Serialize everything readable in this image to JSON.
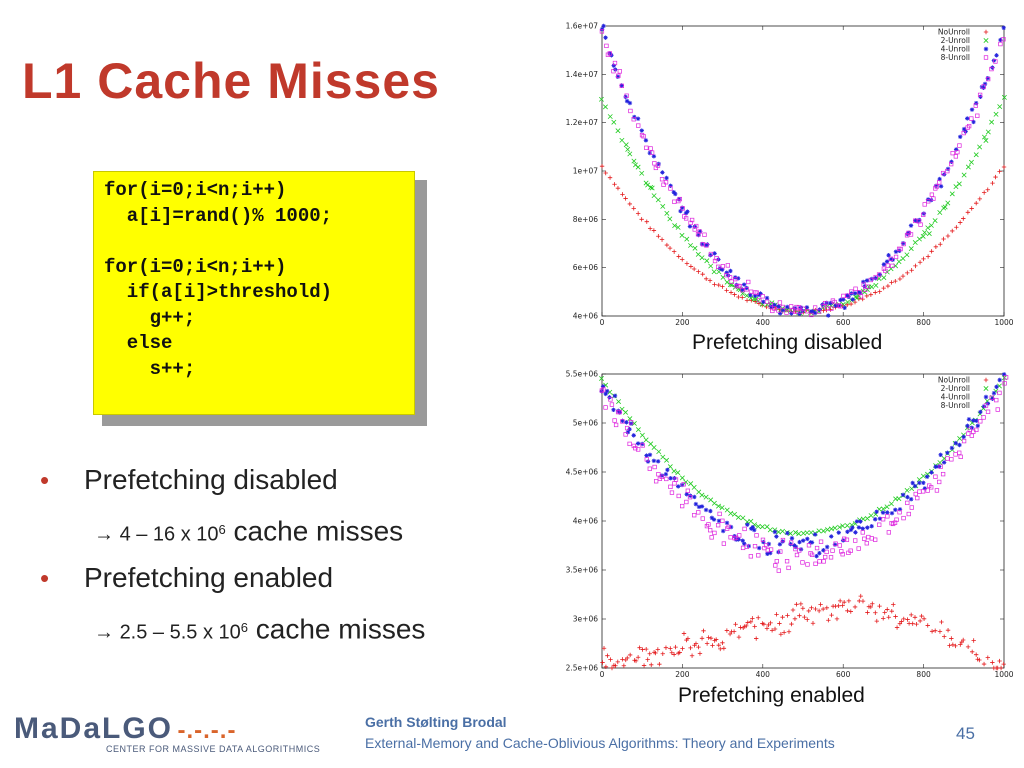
{
  "slide": {
    "title": "L1 Cache Misses",
    "page_number": "45"
  },
  "code": {
    "lines": [
      "for(i=0;i<n;i++)",
      "  a[i]=rand()% 1000;",
      "",
      "for(i=0;i<n;i++)",
      "  if(a[i]>threshold)",
      "    g++;",
      "  else",
      "    s++;"
    ]
  },
  "bullets": [
    {
      "text": "Prefetching disabled",
      "sub": {
        "arrow": "→ ",
        "range": "4 – 16 x 10",
        "exp": "6",
        "tail": " cache misses"
      }
    },
    {
      "text": "Prefetching enabled",
      "sub": {
        "arrow": "→ ",
        "range": "2.5 – 5.5 x 10",
        "exp": "6",
        "tail": " cache misses"
      }
    }
  ],
  "footer": {
    "logo_text": "MaDaLGO",
    "logo_dashes": "-.-.-.-",
    "logo_subtitle": "CENTER FOR MASSIVE DATA ALGORITHMICS",
    "author": "Gerth Stølting Brodal",
    "course": "External-Memory and Cache-Oblivious Algorithms: Theory and Experiments"
  },
  "chart_data": [
    {
      "type": "scatter",
      "caption": "Prefetching disabled",
      "xlim": [
        0,
        1000
      ],
      "ylim": [
        4000000,
        16000000
      ],
      "x_ticks": [
        0,
        200,
        400,
        600,
        800,
        1000
      ],
      "x_tick_labels": [
        "0",
        "200",
        "400",
        "600",
        "800",
        "1000"
      ],
      "y_ticks": [
        4000000,
        6000000,
        8000000,
        10000000,
        12000000,
        14000000,
        16000000
      ],
      "y_tick_labels": [
        "4e+06",
        "6e+06",
        "8e+06",
        "1e+07",
        "1.2e+07",
        "1.4e+07",
        "1.6e+07"
      ],
      "legend_position": "top-right",
      "series": [
        {
          "name": "NoUnroll",
          "marker": "+",
          "color": "#e41a1c",
          "x": [
            0,
            500,
            1000
          ],
          "y": [
            10200000,
            4200000,
            10200000
          ]
        },
        {
          "name": "2-Unroll",
          "marker": "x",
          "color": "#22cc22",
          "x": [
            0,
            500,
            1000
          ],
          "y": [
            13000000,
            4200000,
            13000000
          ]
        },
        {
          "name": "4-Unroll",
          "marker": "*",
          "color": "#2222dd",
          "x": [
            0,
            500,
            1000
          ],
          "y": [
            15800000,
            4200000,
            15800000
          ]
        },
        {
          "name": "8-Unroll",
          "marker": "square",
          "color": "#dd22dd",
          "x": [
            0,
            500,
            1000
          ],
          "y": [
            15600000,
            4200000,
            15600000
          ]
        }
      ]
    },
    {
      "type": "scatter",
      "caption": "Prefetching enabled",
      "xlim": [
        0,
        1000
      ],
      "ylim": [
        2500000,
        5500000
      ],
      "x_ticks": [
        0,
        200,
        400,
        600,
        800,
        1000
      ],
      "x_tick_labels": [
        "0",
        "200",
        "400",
        "600",
        "800",
        "1000"
      ],
      "y_ticks": [
        2500000,
        3000000,
        3500000,
        4000000,
        4500000,
        5000000,
        5500000
      ],
      "y_tick_labels": [
        "2.5e+06",
        "3e+06",
        "3.5e+06",
        "4e+06",
        "4.5e+06",
        "5e+06",
        "5.5e+06"
      ],
      "legend_position": "top-right",
      "series": [
        {
          "name": "NoUnroll",
          "marker": "+",
          "color": "#e41a1c",
          "x": [
            0,
            100,
            250,
            400,
            550,
            650,
            800,
            1000
          ],
          "y": [
            2580000,
            2620000,
            2750000,
            2950000,
            3080000,
            3120000,
            2950000,
            2500000
          ]
        },
        {
          "name": "2-Unroll",
          "marker": "x",
          "color": "#22cc22",
          "x": [
            0,
            500,
            1000
          ],
          "y": [
            5450000,
            3880000,
            5450000
          ]
        },
        {
          "name": "4-Unroll",
          "marker": "*",
          "color": "#2222dd",
          "x": [
            0,
            500,
            1000
          ],
          "y": [
            5350000,
            3750000,
            5500000
          ]
        },
        {
          "name": "8-Unroll",
          "marker": "square",
          "color": "#dd22dd",
          "x": [
            0,
            500,
            1000
          ],
          "y": [
            5300000,
            3650000,
            5400000
          ]
        }
      ]
    }
  ]
}
